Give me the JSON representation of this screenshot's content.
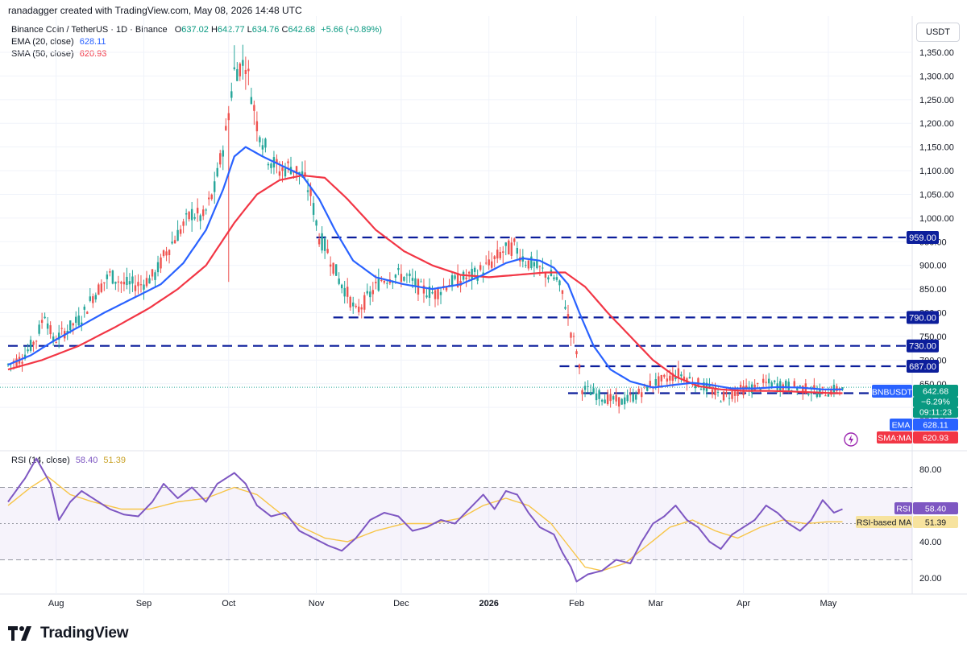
{
  "header": {
    "credit": "ranadagger created with TradingView.com, May 08, 2026 14:48 UTC"
  },
  "legend": {
    "symbol": "Binance Coin / TetherUS · 1D · Binance",
    "open_label": "O",
    "open": "637.02",
    "high_label": "H",
    "high": "642.77",
    "low_label": "L",
    "low": "634.76",
    "close_label": "C",
    "close": "642.68",
    "change": "+5.66 (+0.89%)",
    "ema_label": "EMA (20, close)",
    "ema_value": "628.11",
    "sma_label": "SMA (50, close)",
    "sma_value": "620.93"
  },
  "rsi_legend": {
    "label": "RSI (14, close)",
    "rsi_value": "58.40",
    "ma_value": "51.39"
  },
  "currency": "USDT",
  "footer": {
    "brand": "TradingView"
  },
  "colors": {
    "up": "#26a69a",
    "down": "#ef5350",
    "ema": "#2962ff",
    "sma": "#f23645",
    "rsi": "#7e57c2",
    "rsi_ma": "#f7c548",
    "hline": "#0c1e9b",
    "label_bg": "#0c1e9b",
    "bnb_bg": "#2962ff",
    "text": "#131722",
    "grid": "#f0f3fa"
  },
  "price_badges": [
    {
      "text": "BNBUSDT",
      "kind": "symbol"
    },
    {
      "text": "642.68",
      "kind": "price"
    },
    {
      "text": "−6.29%",
      "kind": "price"
    },
    {
      "text": "09:11:23",
      "kind": "price"
    },
    {
      "text": "EMA",
      "kind": "ema"
    },
    {
      "text": "628.11",
      "kind": "ema"
    },
    {
      "text": "SMA:MA",
      "kind": "sma"
    },
    {
      "text": "620.93",
      "kind": "sma"
    }
  ],
  "rsi_badges": [
    {
      "text": "RSI",
      "kind": "rsi"
    },
    {
      "text": "58.40",
      "kind": "rsi"
    },
    {
      "text": "RSI-based MA",
      "kind": "rsima"
    },
    {
      "text": "51.39",
      "kind": "rsima"
    }
  ],
  "chart_data": {
    "type": "candlestick",
    "price_axis": {
      "ylim": [
        570,
        1375
      ],
      "ticks": [
        1350,
        1300,
        1250,
        1200,
        1150,
        1100,
        1050,
        1000,
        950,
        900,
        850,
        800,
        750,
        700,
        650,
        600
      ],
      "tick_labels": [
        "1,350.00",
        "1,300.00",
        "1,250.00",
        "1,200.00",
        "1,150.00",
        "1,100.00",
        "1,050.00",
        "1,000.00",
        "950.00",
        "900.00",
        "850.00",
        "800.00",
        "750.00",
        "700.00",
        "650.00",
        "600.00"
      ],
      "bottom_label": "570.00"
    },
    "x_axis": {
      "labels": [
        "Aug",
        "Sep",
        "Oct",
        "Nov",
        "Dec",
        "2026",
        "Feb",
        "Mar",
        "Apr",
        "May"
      ],
      "label_day_index": [
        17,
        48,
        78,
        109,
        139,
        170,
        201,
        229,
        260,
        290
      ],
      "start_date": "2025-07-15"
    },
    "horizontal_levels": [
      {
        "value": 959,
        "label": "959.00",
        "from_day": 109
      },
      {
        "value": 790,
        "label": "790.00",
        "from_day": 115
      },
      {
        "value": 730,
        "label": "730.00",
        "from_day": 0
      },
      {
        "value": 687,
        "label": "687.00",
        "from_day": 195
      },
      {
        "value": 630,
        "label": "",
        "from_day": 198
      }
    ],
    "price_keypoints": [
      [
        0,
        690
      ],
      [
        5,
        705
      ],
      [
        10,
        745
      ],
      [
        13,
        800
      ],
      [
        16,
        740
      ],
      [
        20,
        760
      ],
      [
        26,
        790
      ],
      [
        30,
        835
      ],
      [
        36,
        880
      ],
      [
        41,
        860
      ],
      [
        47,
        860
      ],
      [
        52,
        880
      ],
      [
        56,
        930
      ],
      [
        61,
        975
      ],
      [
        65,
        1010
      ],
      [
        69,
        1000
      ],
      [
        73,
        1060
      ],
      [
        77,
        1180
      ],
      [
        80,
        1310
      ],
      [
        84,
        1330
      ],
      [
        88,
        1200
      ],
      [
        92,
        1130
      ],
      [
        96,
        1100
      ],
      [
        100,
        1110
      ],
      [
        104,
        1090
      ],
      [
        107,
        1050
      ],
      [
        110,
        960
      ],
      [
        113,
        930
      ],
      [
        117,
        870
      ],
      [
        120,
        840
      ],
      [
        123,
        800
      ],
      [
        127,
        830
      ],
      [
        132,
        870
      ],
      [
        137,
        880
      ],
      [
        141,
        875
      ],
      [
        146,
        850
      ],
      [
        151,
        840
      ],
      [
        155,
        860
      ],
      [
        160,
        870
      ],
      [
        165,
        880
      ],
      [
        170,
        900
      ],
      [
        175,
        930
      ],
      [
        179,
        940
      ],
      [
        183,
        910
      ],
      [
        187,
        895
      ],
      [
        191,
        880
      ],
      [
        194,
        870
      ],
      [
        197,
        820
      ],
      [
        199,
        760
      ],
      [
        201,
        720
      ],
      [
        203,
        640
      ],
      [
        207,
        630
      ],
      [
        212,
        618
      ],
      [
        217,
        612
      ],
      [
        222,
        625
      ],
      [
        227,
        648
      ],
      [
        232,
        658
      ],
      [
        237,
        672
      ],
      [
        240,
        662
      ],
      [
        244,
        650
      ],
      [
        248,
        638
      ],
      [
        252,
        622
      ],
      [
        256,
        630
      ],
      [
        260,
        638
      ],
      [
        264,
        642
      ],
      [
        268,
        650
      ],
      [
        272,
        648
      ],
      [
        276,
        645
      ],
      [
        280,
        642
      ],
      [
        284,
        636
      ],
      [
        288,
        632
      ],
      [
        292,
        637
      ],
      [
        295,
        643
      ]
    ],
    "ema20_keypoints": [
      [
        0,
        690
      ],
      [
        8,
        710
      ],
      [
        16,
        740
      ],
      [
        25,
        770
      ],
      [
        34,
        800
      ],
      [
        44,
        830
      ],
      [
        54,
        860
      ],
      [
        62,
        905
      ],
      [
        70,
        975
      ],
      [
        76,
        1060
      ],
      [
        80,
        1130
      ],
      [
        84,
        1150
      ],
      [
        90,
        1130
      ],
      [
        97,
        1110
      ],
      [
        104,
        1090
      ],
      [
        110,
        1040
      ],
      [
        116,
        970
      ],
      [
        122,
        910
      ],
      [
        130,
        875
      ],
      [
        140,
        860
      ],
      [
        150,
        850
      ],
      [
        160,
        860
      ],
      [
        168,
        880
      ],
      [
        176,
        905
      ],
      [
        182,
        915
      ],
      [
        188,
        910
      ],
      [
        193,
        895
      ],
      [
        198,
        860
      ],
      [
        202,
        800
      ],
      [
        207,
        730
      ],
      [
        213,
        680
      ],
      [
        220,
        655
      ],
      [
        228,
        642
      ],
      [
        236,
        648
      ],
      [
        242,
        652
      ],
      [
        248,
        648
      ],
      [
        256,
        640
      ],
      [
        264,
        640
      ],
      [
        272,
        643
      ],
      [
        280,
        642
      ],
      [
        288,
        638
      ],
      [
        295,
        638
      ]
    ],
    "sma50_keypoints": [
      [
        0,
        680
      ],
      [
        12,
        700
      ],
      [
        25,
        730
      ],
      [
        38,
        770
      ],
      [
        50,
        810
      ],
      [
        60,
        850
      ],
      [
        70,
        900
      ],
      [
        80,
        990
      ],
      [
        88,
        1050
      ],
      [
        96,
        1080
      ],
      [
        104,
        1090
      ],
      [
        112,
        1085
      ],
      [
        120,
        1040
      ],
      [
        130,
        975
      ],
      [
        140,
        930
      ],
      [
        150,
        900
      ],
      [
        160,
        880
      ],
      [
        170,
        875
      ],
      [
        180,
        880
      ],
      [
        190,
        885
      ],
      [
        197,
        885
      ],
      [
        204,
        855
      ],
      [
        212,
        800
      ],
      [
        220,
        750
      ],
      [
        228,
        700
      ],
      [
        236,
        665
      ],
      [
        244,
        645
      ],
      [
        252,
        638
      ],
      [
        260,
        635
      ],
      [
        268,
        635
      ],
      [
        276,
        634
      ],
      [
        284,
        632
      ],
      [
        292,
        630
      ],
      [
        295,
        630
      ]
    ],
    "rsi": {
      "ylim": [
        10,
        95
      ],
      "ticks": [
        80,
        60,
        40,
        20
      ],
      "bands": [
        30,
        50,
        70
      ],
      "rsi_keypoints": [
        [
          0,
          62
        ],
        [
          6,
          75
        ],
        [
          10,
          86
        ],
        [
          15,
          72
        ],
        [
          18,
          52
        ],
        [
          22,
          62
        ],
        [
          26,
          68
        ],
        [
          31,
          63
        ],
        [
          36,
          58
        ],
        [
          41,
          55
        ],
        [
          46,
          54
        ],
        [
          51,
          62
        ],
        [
          55,
          72
        ],
        [
          60,
          64
        ],
        [
          65,
          70
        ],
        [
          70,
          62
        ],
        [
          74,
          72
        ],
        [
          80,
          78
        ],
        [
          84,
          72
        ],
        [
          88,
          60
        ],
        [
          93,
          54
        ],
        [
          98,
          56
        ],
        [
          103,
          46
        ],
        [
          108,
          42
        ],
        [
          113,
          38
        ],
        [
          118,
          35
        ],
        [
          123,
          42
        ],
        [
          128,
          52
        ],
        [
          133,
          56
        ],
        [
          138,
          54
        ],
        [
          143,
          46
        ],
        [
          148,
          48
        ],
        [
          153,
          52
        ],
        [
          158,
          50
        ],
        [
          163,
          58
        ],
        [
          168,
          66
        ],
        [
          172,
          58
        ],
        [
          176,
          68
        ],
        [
          180,
          66
        ],
        [
          184,
          56
        ],
        [
          188,
          48
        ],
        [
          193,
          44
        ],
        [
          196,
          34
        ],
        [
          199,
          26
        ],
        [
          201,
          18
        ],
        [
          205,
          22
        ],
        [
          210,
          24
        ],
        [
          215,
          30
        ],
        [
          220,
          28
        ],
        [
          224,
          40
        ],
        [
          228,
          50
        ],
        [
          232,
          54
        ],
        [
          236,
          60
        ],
        [
          240,
          52
        ],
        [
          244,
          48
        ],
        [
          248,
          40
        ],
        [
          252,
          36
        ],
        [
          256,
          44
        ],
        [
          260,
          48
        ],
        [
          264,
          52
        ],
        [
          268,
          60
        ],
        [
          272,
          56
        ],
        [
          276,
          50
        ],
        [
          280,
          46
        ],
        [
          284,
          52
        ],
        [
          288,
          63
        ],
        [
          292,
          56
        ],
        [
          295,
          58
        ]
      ],
      "ma_keypoints": [
        [
          0,
          60
        ],
        [
          8,
          70
        ],
        [
          14,
          76
        ],
        [
          22,
          66
        ],
        [
          30,
          62
        ],
        [
          40,
          58
        ],
        [
          50,
          58
        ],
        [
          60,
          62
        ],
        [
          70,
          64
        ],
        [
          80,
          70
        ],
        [
          88,
          66
        ],
        [
          96,
          56
        ],
        [
          104,
          48
        ],
        [
          112,
          42
        ],
        [
          120,
          40
        ],
        [
          130,
          46
        ],
        [
          140,
          50
        ],
        [
          150,
          50
        ],
        [
          160,
          53
        ],
        [
          168,
          60
        ],
        [
          176,
          64
        ],
        [
          184,
          60
        ],
        [
          192,
          50
        ],
        [
          198,
          38
        ],
        [
          204,
          26
        ],
        [
          210,
          24
        ],
        [
          218,
          28
        ],
        [
          226,
          38
        ],
        [
          234,
          48
        ],
        [
          242,
          52
        ],
        [
          250,
          46
        ],
        [
          258,
          42
        ],
        [
          266,
          48
        ],
        [
          274,
          52
        ],
        [
          282,
          50
        ],
        [
          290,
          51
        ],
        [
          295,
          51
        ]
      ]
    }
  }
}
